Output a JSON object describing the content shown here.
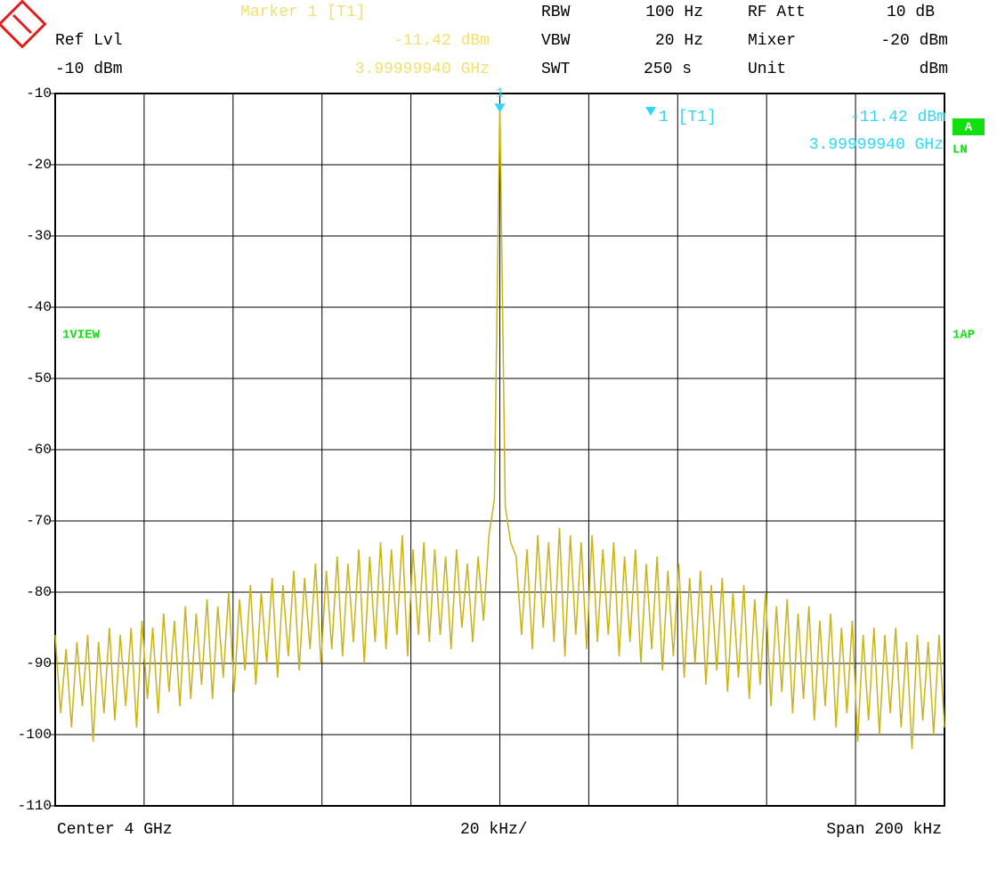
{
  "header": {
    "marker_title": "Marker 1 [T1]",
    "marker_level": "-11.42 dBm",
    "marker_freq": "3.99999940 GHz",
    "ref_lvl_label": "Ref Lvl",
    "ref_lvl_value": "-10 dBm",
    "rbw_label": "RBW",
    "rbw_value": "100 Hz",
    "vbw_label": "VBW",
    "vbw_value": "20 Hz",
    "swt_label": "SWT",
    "swt_value": "250 s",
    "rf_att_label": "RF Att",
    "rf_att_value": "10 dB",
    "mixer_label": "Mixer",
    "mixer_value": "-20 dBm",
    "unit_label": "Unit",
    "unit_value": "dBm"
  },
  "marker_box": {
    "number": "1",
    "name": "1 [T1]",
    "level": "-11.42 dBm",
    "freq": "3.99999940 GHz"
  },
  "side_labels": {
    "trace_mode": "A",
    "ln": "LN",
    "view": "1VIEW",
    "detector": "1AP"
  },
  "footer": {
    "center": "Center 4 GHz",
    "div": "20 kHz/",
    "span": "Span 200 kHz"
  },
  "chart_data": {
    "type": "line",
    "color": "#c8b414",
    "ylim": [
      -110,
      -10
    ],
    "yticks": [
      -10,
      -20,
      -30,
      -40,
      -50,
      -60,
      -70,
      -80,
      -90,
      -100,
      -110
    ],
    "grid": true,
    "values": [
      -86,
      -97,
      -88,
      -99,
      -87,
      -96,
      -86,
      -101,
      -87,
      -97,
      -85,
      -98,
      -86,
      -96,
      -85,
      -99,
      -84,
      -95,
      -85,
      -97,
      -83,
      -94,
      -84,
      -96,
      -82,
      -95,
      -83,
      -93,
      -81,
      -95,
      -82,
      -92,
      -80,
      -94,
      -81,
      -91,
      -79,
      -93,
      -80,
      -90,
      -78,
      -92,
      -79,
      -89,
      -77,
      -91,
      -78,
      -88,
      -76,
      -90,
      -77,
      -88,
      -75,
      -89,
      -76,
      -87,
      -74,
      -90,
      -75,
      -87,
      -73,
      -88,
      -74,
      -86,
      -72,
      -89,
      -74,
      -86,
      -73,
      -87,
      -74,
      -86,
      -75,
      -88,
      -74,
      -85,
      -76,
      -87,
      -75,
      -84,
      -72,
      -67,
      -11.42,
      -68,
      -73,
      -75,
      -86,
      -74,
      -88,
      -72,
      -85,
      -73,
      -87,
      -71,
      -89,
      -72,
      -86,
      -73,
      -88,
      -72,
      -87,
      -74,
      -86,
      -73,
      -89,
      -75,
      -87,
      -74,
      -90,
      -76,
      -88,
      -75,
      -91,
      -77,
      -89,
      -76,
      -92,
      -78,
      -90,
      -77,
      -93,
      -79,
      -91,
      -78,
      -94,
      -80,
      -92,
      -79,
      -95,
      -81,
      -93,
      -80,
      -96,
      -82,
      -94,
      -81,
      -97,
      -83,
      -95,
      -82,
      -98,
      -84,
      -96,
      -83,
      -99,
      -85,
      -97,
      -84,
      -101,
      -86,
      -98,
      -85,
      -100,
      -86,
      -97,
      -85,
      -99,
      -87,
      -102,
      -86,
      -98,
      -87,
      -100,
      -86,
      -99
    ]
  }
}
